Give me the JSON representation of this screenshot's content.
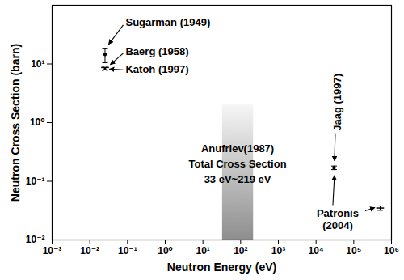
{
  "chart_data": {
    "type": "scatter",
    "xlabel": "Neutron Energy (eV)",
    "ylabel": "Neutron Cross Section (barn)",
    "log": true,
    "grid": false,
    "color": "#000000",
    "xlim": [
      0.001,
      1000000
    ],
    "ylim": [
      0.01,
      100
    ],
    "xticks": [
      {
        "value": 0.001,
        "label": "10⁻³"
      },
      {
        "value": 0.01,
        "label": "10⁻²"
      },
      {
        "value": 0.1,
        "label": "10⁻¹"
      },
      {
        "value": 1,
        "label": "10⁰"
      },
      {
        "value": 10,
        "label": "10¹"
      },
      {
        "value": 100,
        "label": "10²"
      },
      {
        "value": 1000,
        "label": "10³"
      },
      {
        "value": 10000,
        "label": "10⁴"
      },
      {
        "value": 100000,
        "label": "10⁵"
      },
      {
        "value": 1000000,
        "label": "10⁶"
      }
    ],
    "yticks": [
      {
        "value": 0.01,
        "label": "10⁻²"
      },
      {
        "value": 0.1,
        "label": "10⁻¹"
      },
      {
        "value": 1,
        "label": "10⁰"
      },
      {
        "value": 10,
        "label": "10¹"
      }
    ],
    "series": [
      {
        "name": "Sugarman (1949)",
        "color": "#000000",
        "marker": "circle",
        "x": [
          0.0253
        ],
        "values": [
          14.5
        ],
        "error": [
          4.0
        ]
      },
      {
        "name": "Baerg (1958)",
        "color": "#000000",
        "marker": "line",
        "x": [
          0.0253
        ],
        "values": [
          8.7
        ]
      },
      {
        "name": "Katoh (1997)",
        "color": "#000000",
        "marker": "cross",
        "x": [
          0.0253
        ],
        "values": [
          8.3
        ]
      },
      {
        "name": "Jaag (1997)",
        "color": "#000000",
        "marker": "circle",
        "x": [
          30000
        ],
        "values": [
          0.17
        ],
        "error": [
          0.012
        ]
      },
      {
        "name": "Patronis (2004)",
        "color": "#000000",
        "marker": "line",
        "x": [
          500000
        ],
        "values": [
          0.035
        ],
        "error": [
          0.003
        ]
      }
    ],
    "band": {
      "text": [
        "Anufriev(1987)",
        "Total Cross Section",
        "33 eV~219 eV"
      ],
      "x": [
        33,
        219
      ],
      "y": [
        0.01,
        2
      ]
    }
  }
}
